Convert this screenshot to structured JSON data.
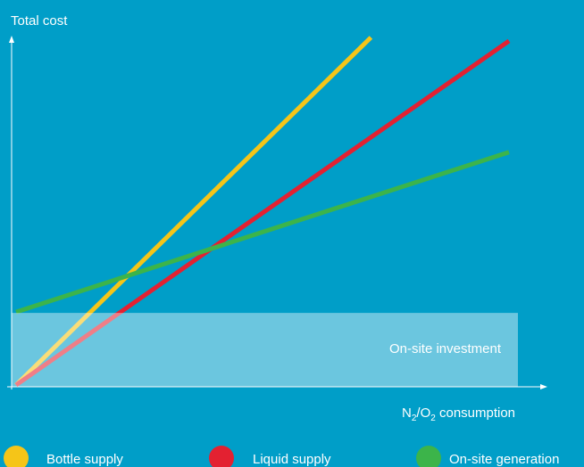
{
  "chart_data": {
    "type": "line",
    "title": "",
    "ylabel": "Total cost",
    "xlabel": {
      "main": "N",
      "sub1": "2",
      "mid": "/O",
      "sub2": "2",
      "rest": " consumption"
    },
    "xlim": [
      0,
      100
    ],
    "ylim": [
      0,
      100
    ],
    "grid": false,
    "legend_position": "bottom",
    "series": [
      {
        "name": "Bottle supply",
        "color": "#f5c518",
        "x": [
          0,
          72
        ],
        "y": [
          0,
          100
        ]
      },
      {
        "name": "Liquid supply",
        "color": "#e32131",
        "x": [
          0,
          100
        ],
        "y": [
          0,
          99
        ]
      },
      {
        "name": "On-site generation",
        "color": "#3cb44a",
        "x": [
          0,
          100
        ],
        "y": [
          21,
          67
        ]
      }
    ],
    "region": {
      "label": "On-site investment",
      "x": [
        0,
        100
      ],
      "y": [
        0,
        21
      ]
    }
  }
}
